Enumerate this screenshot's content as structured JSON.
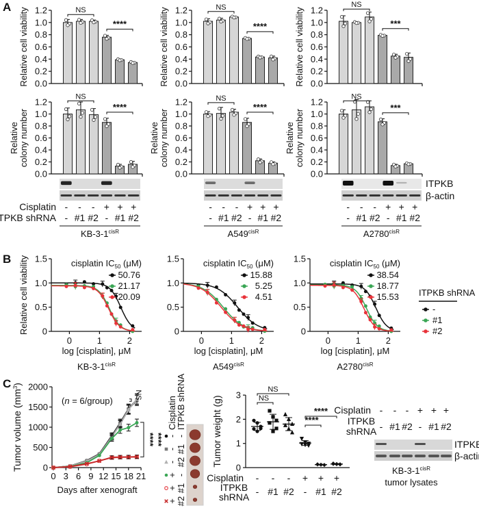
{
  "panel_labels": [
    "A",
    "B",
    "C"
  ],
  "colors": {
    "bar_light": "#d6d6d6",
    "bar_dark": "#a9a9a9",
    "black": "#111111",
    "green": "#3aa655",
    "red": "#e8333a",
    "gray_dark": "#777777",
    "gray_light": "#b0b0b0",
    "tumor": "#8b3a2e",
    "tumor_bg": "#ddd3cc"
  },
  "panel_a": {
    "row_labels": {
      "cisplatin": "Cisplatin",
      "shrna": "ITPKB shRNA"
    },
    "lanes": {
      "cisplatin": [
        "-",
        "-",
        "-",
        "+",
        "+",
        "+"
      ],
      "shrna": [
        "-",
        "#1",
        "#2",
        "-",
        "#1",
        "#2"
      ]
    },
    "blot_labels": [
      "ITPKB",
      "β-actin"
    ],
    "cell_lines": [
      {
        "name": "KB-3-1",
        "sup": "cisR",
        "itpkb_band_intensity": [
          0.7,
          0,
          0,
          0.7,
          0,
          0
        ]
      },
      {
        "name": "A549",
        "sup": "cisR",
        "itpkb_band_intensity": [
          0.35,
          0,
          0,
          0.35,
          0,
          0
        ]
      },
      {
        "name": "A2780",
        "sup": "cisR",
        "itpkb_band_intensity": [
          1,
          0,
          0,
          1,
          0.05,
          0
        ]
      }
    ]
  },
  "panel_b_legend": {
    "title": "ITPKB shRNA",
    "items": [
      "-",
      "#1",
      "#2"
    ]
  },
  "panel_c": {
    "annotation": {
      "open": "(",
      "n": "n",
      "rest": " = 6/group)"
    },
    "legend_headers": [
      "Cisplatin",
      "ITPKB shRNA"
    ],
    "legend_rows": [
      {
        "cisplatin": "-",
        "shrna": "-"
      },
      {
        "cisplatin": "-",
        "shrna": "#1"
      },
      {
        "cisplatin": "-",
        "shrna": "#2"
      },
      {
        "cisplatin": "+",
        "shrna": "-"
      },
      {
        "cisplatin": "+",
        "shrna": "#1"
      },
      {
        "cisplatin": "+",
        "shrna": "#2"
      }
    ],
    "tumor_relative_size": [
      1,
      0.95,
      0.95,
      0.85,
      0.35,
      0.35
    ],
    "blot": {
      "cisplatin_label": "Cisplatin",
      "shrna_label_1": "ITPKB",
      "shrna_label_2": "shRNA",
      "cisplatin": [
        "-",
        "-",
        "-",
        "+",
        "+",
        "+"
      ],
      "shrna": [
        "-",
        "#1",
        "#2",
        "-",
        "#1",
        "#2"
      ],
      "blot_labels": [
        "ITPKB",
        "β-actin"
      ],
      "itpkb_band_intensity": [
        0.75,
        0,
        0,
        0.75,
        0,
        0
      ],
      "caption_name": "KB-3-1",
      "caption_sup": "cisR",
      "caption_line2": "tumor lysates"
    }
  },
  "chart_data": [
    {
      "type": "bar",
      "panel": "A",
      "cell_line": "KB-3-1cisR",
      "ylabel": "Relative cell viability",
      "ylim": [
        0,
        1.2
      ],
      "yticks": [
        "0.0",
        "0.2",
        "0.4",
        "0.6",
        "0.8",
        "1.0",
        "1.2"
      ],
      "values": [
        1.0,
        1.02,
        1.02,
        0.76,
        0.39,
        0.345
      ],
      "sd": [
        0.05,
        0.03,
        0.02,
        0.03,
        0.01,
        0.01
      ],
      "significance": [
        "NS",
        "****"
      ]
    },
    {
      "type": "bar",
      "panel": "A",
      "cell_line": "A549cisR",
      "ylabel": "Relative cell viability",
      "ylim": [
        0,
        1.2
      ],
      "yticks": [
        "0.0",
        "0.2",
        "0.4",
        "0.6",
        "0.8",
        "1.0",
        "1.2"
      ],
      "values": [
        1.02,
        1.04,
        1.09,
        0.74,
        0.435,
        0.42
      ],
      "sd": [
        0.04,
        0.03,
        0.01,
        0.01,
        0.01,
        0.03
      ],
      "significance": [
        "NS",
        "****"
      ]
    },
    {
      "type": "bar",
      "panel": "A",
      "cell_line": "A2780cisR",
      "ylabel": "Relative cell viability",
      "ylim": [
        0,
        1.2
      ],
      "yticks": [
        "0.0",
        "0.2",
        "0.4",
        "0.6",
        "0.8",
        "1.0",
        "1.2"
      ],
      "values": [
        1.02,
        1.0,
        1.09,
        0.79,
        0.45,
        0.43
      ],
      "sd": [
        0.09,
        0.01,
        0.08,
        0.01,
        0.03,
        0.07
      ],
      "significance": [
        "NS",
        "***"
      ]
    },
    {
      "type": "bar",
      "panel": "A",
      "cell_line": "KB-3-1cisR",
      "ylabel": [
        "Relative",
        "colony number"
      ],
      "ylim": [
        0,
        1.2
      ],
      "yticks": [
        "0.0",
        "0.2",
        "0.4",
        "0.6",
        "0.8",
        "1.0",
        "1.2"
      ],
      "values": [
        1.0,
        1.07,
        0.99,
        0.86,
        0.13,
        0.16
      ],
      "sd": [
        0.1,
        0.13,
        0.1,
        0.07,
        0.03,
        0.05
      ],
      "significance": [
        "NS",
        "****"
      ]
    },
    {
      "type": "bar",
      "panel": "A",
      "cell_line": "A549cisR",
      "ylabel": [
        "Relative",
        "colony number"
      ],
      "ylim": [
        0,
        1.2
      ],
      "yticks": [
        "0.0",
        "0.2",
        "0.4",
        "0.6",
        "0.8",
        "1.0",
        "1.2"
      ],
      "values": [
        1.0,
        1.01,
        1.03,
        0.86,
        0.22,
        0.18
      ],
      "sd": [
        0.04,
        0.1,
        0.05,
        0.07,
        0.03,
        0.02
      ],
      "significance": [
        "NS",
        "****"
      ]
    },
    {
      "type": "bar",
      "panel": "A",
      "cell_line": "A2780cisR",
      "ylabel": [
        "Relative",
        "colony number"
      ],
      "ylim": [
        0,
        1.2
      ],
      "yticks": [
        "0.0",
        "0.2",
        "0.4",
        "0.6",
        "0.8",
        "1.0",
        "1.2"
      ],
      "values": [
        1.0,
        1.07,
        1.12,
        0.87,
        0.14,
        0.17
      ],
      "sd": [
        0.07,
        0.17,
        0.1,
        0.05,
        0.02,
        0.01
      ],
      "significance": [
        "NS",
        "***"
      ]
    },
    {
      "type": "line",
      "panel": "B",
      "cell_line": {
        "name": "KB-3-1",
        "sup": "cisR"
      },
      "ylabel": "Relative cell viability",
      "xlabel": "log [cisplatin], μM",
      "xlim": [
        -0.6,
        2.4
      ],
      "ylim": [
        0,
        1.5
      ],
      "xticks": [
        "0",
        "1",
        "2"
      ],
      "yticks": [
        "0",
        "0.5",
        "1.0",
        "1.5"
      ],
      "legend_title": {
        "main": "cisplatin IC",
        "sub": "50",
        "unit": " (μM)"
      },
      "x_points": [
        -0.1,
        0.2,
        0.5,
        0.8,
        1.1,
        1.25,
        1.4,
        1.55,
        1.7,
        2.1
      ],
      "series": [
        {
          "name": "-",
          "ic50": "50.76",
          "top": 1.0,
          "color": "#111111"
        },
        {
          "name": "#1",
          "ic50": "21.17",
          "top": 0.95,
          "color": "#3aa655"
        },
        {
          "name": "#2",
          "ic50": "20.09",
          "top": 0.94,
          "color": "#e8333a"
        }
      ]
    },
    {
      "type": "line",
      "panel": "B",
      "cell_line": {
        "name": "A549",
        "sup": "cisR"
      },
      "ylabel": "",
      "xlabel": "log [cisplatin], μM",
      "xlim": [
        -0.6,
        2.4
      ],
      "ylim": [
        0,
        1.5
      ],
      "xticks": [
        "0",
        "1",
        "2"
      ],
      "yticks": [
        "0",
        "0.5",
        "1.0",
        "1.5"
      ],
      "legend_title": {
        "main": "cisplatin IC",
        "sub": "50",
        "unit": " (μM)"
      },
      "x_points": [
        -0.1,
        0.2,
        0.5,
        0.8,
        1.1,
        1.25,
        1.4,
        1.55,
        1.7,
        2.1
      ],
      "series": [
        {
          "name": "-",
          "ic50": "15.88",
          "top": 1.0,
          "color": "#111111"
        },
        {
          "name": "#1",
          "ic50": "5.25",
          "top": 1.0,
          "color": "#3aa655"
        },
        {
          "name": "#2",
          "ic50": "4.51",
          "top": 1.0,
          "color": "#e8333a"
        }
      ]
    },
    {
      "type": "line",
      "panel": "B",
      "cell_line": {
        "name": "A2780",
        "sup": "cisR"
      },
      "ylabel": "",
      "xlabel": "log [cisplatin], μM",
      "xlim": [
        -0.6,
        2.4
      ],
      "ylim": [
        0,
        1.5
      ],
      "xticks": [
        "0",
        "1",
        "2"
      ],
      "yticks": [
        "0",
        "0.5",
        "1.0",
        "1.5"
      ],
      "legend_title": {
        "main": "cisplatin IC",
        "sub": "50",
        "unit": " (μM)"
      },
      "x_points": [
        -0.1,
        0.2,
        0.5,
        0.8,
        1.1,
        1.25,
        1.4,
        1.55,
        1.7,
        2.1
      ],
      "series": [
        {
          "name": "-",
          "ic50": "38.54",
          "top": 0.98,
          "color": "#111111"
        },
        {
          "name": "#1",
          "ic50": "18.77",
          "top": 0.96,
          "color": "#3aa655"
        },
        {
          "name": "#2",
          "ic50": "15.53",
          "top": 0.95,
          "color": "#e8333a"
        }
      ]
    },
    {
      "type": "line",
      "panel": "C",
      "ylabel": {
        "main": "Tumor volume (mm",
        "sup": "3",
        "end": ")"
      },
      "xlabel": "Days after xenograft",
      "xlim": [
        0,
        21
      ],
      "ylim": [
        0,
        2000
      ],
      "xticks": [
        "0",
        "3",
        "6",
        "9",
        "12",
        "15",
        "18",
        "21"
      ],
      "yticks": [
        "0",
        "500",
        "1000",
        "1500",
        "2000"
      ],
      "x": [
        0,
        4,
        8,
        11,
        14,
        16,
        18,
        20
      ],
      "series": [
        {
          "cisplatin": "-",
          "shrna": "-",
          "marker": "circle",
          "color": "#111111",
          "values": [
            0,
            40,
            175,
            340,
            790,
            1110,
            1460,
            1690
          ]
        },
        {
          "cisplatin": "-",
          "shrna": "#1",
          "marker": "square",
          "color": "#777777",
          "values": [
            0,
            38,
            168,
            330,
            770,
            1090,
            1450,
            1660
          ]
        },
        {
          "cisplatin": "-",
          "shrna": "#2",
          "marker": "triangle",
          "color": "#b0b0b0",
          "values": [
            0,
            36,
            160,
            320,
            750,
            1070,
            1430,
            1700
          ]
        },
        {
          "cisplatin": "+",
          "shrna": "-",
          "marker": "circle",
          "color": "#3aa655",
          "values": [
            0,
            30,
            120,
            300,
            720,
            930,
            990,
            1110
          ]
        },
        {
          "cisplatin": "+",
          "shrna": "#1",
          "marker": "open-circle",
          "color": "#e8555a",
          "values": [
            0,
            20,
            85,
            170,
            245,
            255,
            258,
            262
          ]
        },
        {
          "cisplatin": "+",
          "shrna": "#2",
          "marker": "x",
          "color": "#c62828",
          "values": [
            0,
            25,
            95,
            165,
            255,
            262,
            265,
            270
          ]
        }
      ],
      "significance": [
        "NS",
        "****",
        "****"
      ]
    },
    {
      "type": "scatter",
      "panel": "C",
      "ylabel": "Tumor weight (g)",
      "ylim": [
        0,
        3
      ],
      "yticks": [
        "0",
        "1",
        "2",
        "3"
      ],
      "row_labels": {
        "cisplatin": "Cisplatin",
        "shrna_1": "ITPKB",
        "shrna_2": "shRNA"
      },
      "groups": [
        {
          "cisplatin": "-",
          "shrna": "-",
          "marker": "circle",
          "values": [
            1.95,
            1.85,
            1.7,
            1.6,
            1.5,
            1.62
          ]
        },
        {
          "cisplatin": "-",
          "shrna": "#1",
          "marker": "square",
          "values": [
            2.35,
            2.1,
            1.95,
            1.85,
            1.5,
            1.62
          ]
        },
        {
          "cisplatin": "-",
          "shrna": "#2",
          "marker": "triangle",
          "values": [
            2.2,
            2.0,
            1.8,
            1.75,
            1.6,
            1.45
          ]
        },
        {
          "cisplatin": "+",
          "shrna": "-",
          "marker": "inverted-triangle",
          "values": [
            1.2,
            1.05,
            1.0,
            0.98,
            0.95,
            0.92
          ]
        },
        {
          "cisplatin": "+",
          "shrna": "#1",
          "marker": "diamond",
          "values": [
            0.15,
            0.13,
            0.12,
            0.12,
            0.11,
            0.1
          ]
        },
        {
          "cisplatin": "+",
          "shrna": "#2",
          "marker": "diamond",
          "values": [
            0.18,
            0.16,
            0.15,
            0.14,
            0.13,
            0.12
          ]
        }
      ],
      "significance": [
        {
          "label": "NS",
          "from": 1,
          "to": 3
        },
        {
          "label": "NS",
          "from": 1,
          "to": 2
        },
        {
          "label": "****",
          "from": 4,
          "to": 6
        },
        {
          "label": "****",
          "from": 4,
          "to": 5
        }
      ]
    }
  ]
}
